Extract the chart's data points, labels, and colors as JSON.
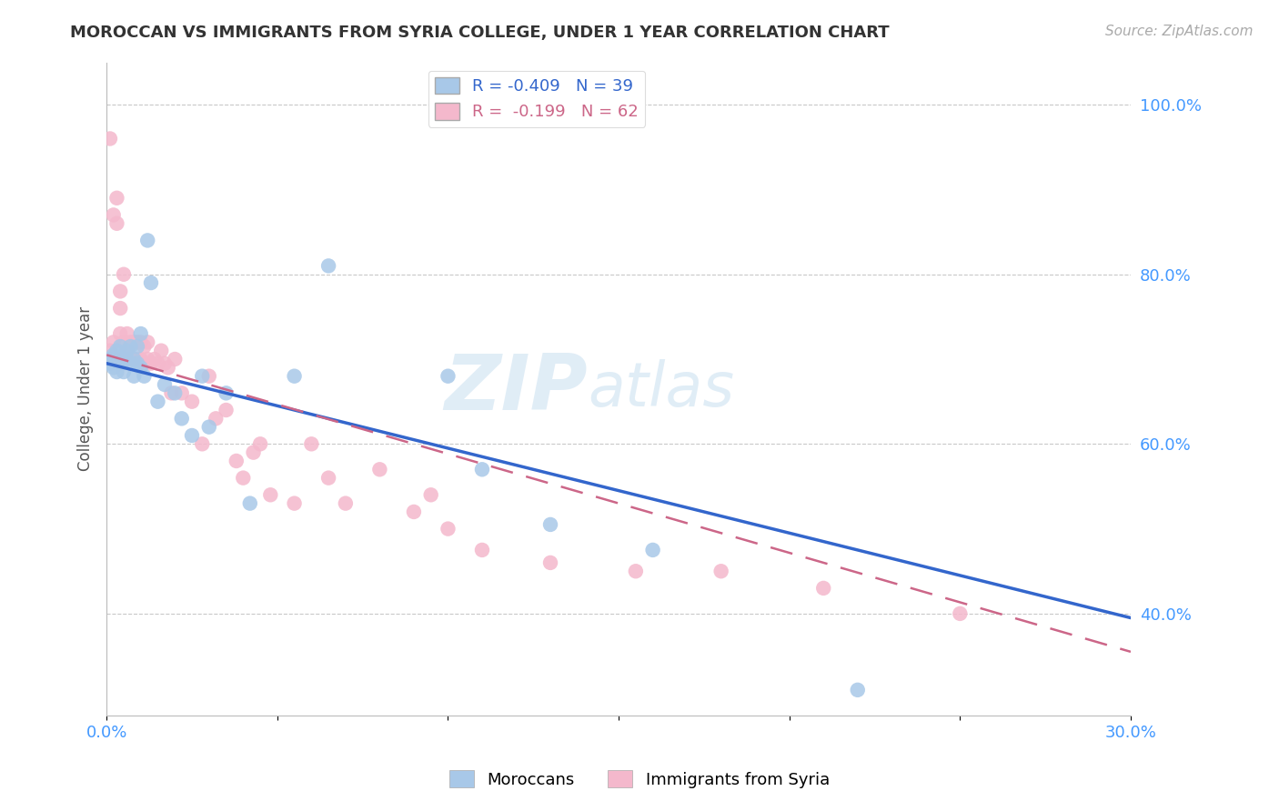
{
  "title": "MOROCCAN VS IMMIGRANTS FROM SYRIA COLLEGE, UNDER 1 YEAR CORRELATION CHART",
  "source": "Source: ZipAtlas.com",
  "ylabel": "College, Under 1 year",
  "x_min": 0.0,
  "x_max": 0.3,
  "y_min": 0.28,
  "y_max": 1.05,
  "x_ticks": [
    0.0,
    0.05,
    0.1,
    0.15,
    0.2,
    0.25,
    0.3
  ],
  "x_tick_labels": [
    "0.0%",
    "",
    "",
    "",
    "",
    "",
    "30.0%"
  ],
  "y_ticks": [
    0.4,
    0.6,
    0.8,
    1.0
  ],
  "y_tick_labels": [
    "40.0%",
    "60.0%",
    "80.0%",
    "100.0%"
  ],
  "moroccan_color": "#a8c8e8",
  "syria_color": "#f4b8cc",
  "moroccan_line_color": "#3366cc",
  "syria_line_color": "#cc6688",
  "r_moroccan": -0.409,
  "n_moroccan": 39,
  "r_syria": -0.199,
  "n_syria": 62,
  "watermark_zip": "ZIP",
  "watermark_atlas": "atlas",
  "blue_line_x0": 0.0,
  "blue_line_y0": 0.695,
  "blue_line_x1": 0.3,
  "blue_line_y1": 0.395,
  "pink_line_x0": 0.0,
  "pink_line_y0": 0.705,
  "pink_line_x1": 0.3,
  "pink_line_y1": 0.355,
  "moroccan_scatter_x": [
    0.001,
    0.001,
    0.002,
    0.002,
    0.003,
    0.003,
    0.004,
    0.004,
    0.005,
    0.005,
    0.006,
    0.006,
    0.007,
    0.007,
    0.008,
    0.008,
    0.009,
    0.009,
    0.01,
    0.01,
    0.011,
    0.012,
    0.013,
    0.015,
    0.017,
    0.02,
    0.022,
    0.025,
    0.028,
    0.03,
    0.035,
    0.042,
    0.055,
    0.065,
    0.1,
    0.11,
    0.13,
    0.16,
    0.22
  ],
  "moroccan_scatter_y": [
    0.695,
    0.7,
    0.69,
    0.705,
    0.685,
    0.71,
    0.695,
    0.715,
    0.7,
    0.685,
    0.71,
    0.7,
    0.695,
    0.715,
    0.68,
    0.7,
    0.695,
    0.715,
    0.73,
    0.69,
    0.68,
    0.84,
    0.79,
    0.65,
    0.67,
    0.66,
    0.63,
    0.61,
    0.68,
    0.62,
    0.66,
    0.53,
    0.68,
    0.81,
    0.68,
    0.57,
    0.505,
    0.475,
    0.31
  ],
  "syria_scatter_x": [
    0.001,
    0.001,
    0.001,
    0.002,
    0.002,
    0.002,
    0.003,
    0.003,
    0.003,
    0.004,
    0.004,
    0.004,
    0.005,
    0.005,
    0.005,
    0.006,
    0.006,
    0.007,
    0.007,
    0.008,
    0.008,
    0.009,
    0.009,
    0.01,
    0.01,
    0.011,
    0.011,
    0.012,
    0.012,
    0.013,
    0.014,
    0.015,
    0.016,
    0.017,
    0.018,
    0.019,
    0.02,
    0.022,
    0.025,
    0.028,
    0.03,
    0.032,
    0.035,
    0.038,
    0.04,
    0.043,
    0.045,
    0.048,
    0.055,
    0.06,
    0.065,
    0.07,
    0.08,
    0.09,
    0.1,
    0.11,
    0.13,
    0.155,
    0.18,
    0.21,
    0.25,
    0.095
  ],
  "syria_scatter_y": [
    0.7,
    0.71,
    0.96,
    0.7,
    0.72,
    0.87,
    0.86,
    0.89,
    0.7,
    0.73,
    0.76,
    0.78,
    0.7,
    0.72,
    0.8,
    0.71,
    0.73,
    0.7,
    0.72,
    0.7,
    0.72,
    0.7,
    0.72,
    0.7,
    0.72,
    0.695,
    0.715,
    0.7,
    0.72,
    0.695,
    0.7,
    0.695,
    0.71,
    0.695,
    0.69,
    0.66,
    0.7,
    0.66,
    0.65,
    0.6,
    0.68,
    0.63,
    0.64,
    0.58,
    0.56,
    0.59,
    0.6,
    0.54,
    0.53,
    0.6,
    0.56,
    0.53,
    0.57,
    0.52,
    0.5,
    0.475,
    0.46,
    0.45,
    0.45,
    0.43,
    0.4,
    0.54
  ]
}
